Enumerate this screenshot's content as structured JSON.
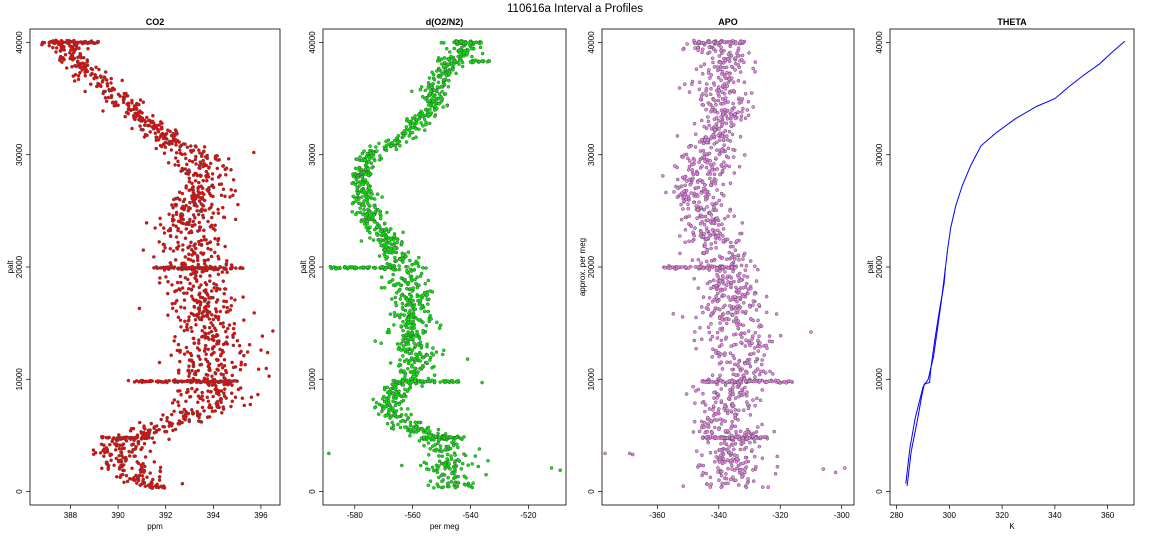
{
  "figure_title": "110616a   Interval a Profiles",
  "chart_data": [
    {
      "type": "scatter",
      "title": "CO2",
      "xlabel": "ppm",
      "ylabel": "palt",
      "xlim": [
        386.3,
        396.8
      ],
      "ylim": [
        -1200,
        41200
      ],
      "xticks": [
        388,
        390,
        392,
        394,
        396
      ],
      "xtick_labels": [
        "388",
        "390",
        "392",
        "394",
        "396"
      ],
      "yticks": [
        0,
        10000,
        20000,
        30000,
        40000
      ],
      "ytick_labels": [
        "0",
        "10000",
        "20000",
        "30000",
        "40000"
      ],
      "color": "#ff0000",
      "profile": [
        {
          "y": 500,
          "x": 391.5
        },
        {
          "y": 2000,
          "x": 390.5
        },
        {
          "y": 3500,
          "x": 390.0
        },
        {
          "y": 4800,
          "x": 390.7
        },
        {
          "y": 6000,
          "x": 392.3
        },
        {
          "y": 7500,
          "x": 393.8
        },
        {
          "y": 9000,
          "x": 394.0
        },
        {
          "y": 10500,
          "x": 393.8
        },
        {
          "y": 12000,
          "x": 394.0
        },
        {
          "y": 14000,
          "x": 393.8
        },
        {
          "y": 16000,
          "x": 393.6
        },
        {
          "y": 18000,
          "x": 393.4
        },
        {
          "y": 20000,
          "x": 393.2
        },
        {
          "y": 22000,
          "x": 393.1
        },
        {
          "y": 24000,
          "x": 393.0
        },
        {
          "y": 26000,
          "x": 393.3
        },
        {
          "y": 28000,
          "x": 393.6
        },
        {
          "y": 30000,
          "x": 393.2
        },
        {
          "y": 31500,
          "x": 392.0
        },
        {
          "y": 33000,
          "x": 391.2
        },
        {
          "y": 34500,
          "x": 390.3
        },
        {
          "y": 36000,
          "x": 389.5
        },
        {
          "y": 37500,
          "x": 388.7
        },
        {
          "y": 38500,
          "x": 388.2
        },
        {
          "y": 40000,
          "x": 387.8
        }
      ],
      "noise_sd": [
        0.45,
        0.55,
        0.55,
        0.45,
        0.6,
        0.75,
        0.75,
        0.8,
        0.8,
        0.75,
        0.8,
        0.75,
        0.75,
        0.7,
        0.65,
        0.65,
        0.6,
        0.6,
        0.45,
        0.4,
        0.35,
        0.35,
        0.4,
        0.35,
        0.4
      ],
      "level_segments": [
        {
          "y": 40000,
          "x_min": 386.8,
          "x_max": 389.2
        },
        {
          "y": 19900,
          "x_min": 391.5,
          "x_max": 395.3
        },
        {
          "y": 9800,
          "x_min": 390.4,
          "x_max": 395.0
        },
        {
          "y": 4800,
          "x_min": 389.3,
          "x_max": 391.3
        }
      ],
      "outliers": [
        {
          "x": 396.5,
          "y": 14300
        },
        {
          "x": 396.0,
          "y": 12600
        },
        {
          "x": 395.7,
          "y": 30200
        },
        {
          "x": 395.6,
          "y": 8400
        },
        {
          "x": 386.8,
          "y": 39800
        },
        {
          "x": 391.5,
          "y": 20900
        },
        {
          "x": 392.7,
          "y": 700
        },
        {
          "x": 395.9,
          "y": 10900
        }
      ]
    },
    {
      "type": "scatter",
      "title": "d(O2/N2)",
      "xlabel": "per meg",
      "ylabel": "palt",
      "xlim": [
        -591,
        -507
      ],
      "ylim": [
        -1200,
        41200
      ],
      "xticks": [
        -580,
        -560,
        -540,
        -520
      ],
      "xtick_labels": [
        "-580",
        "-560",
        "-540",
        "-520"
      ],
      "yticks": [
        0,
        10000,
        20000,
        30000,
        40000
      ],
      "ytick_labels": [
        "0",
        "10000",
        "20000",
        "30000",
        "40000"
      ],
      "color": "#00ee00",
      "profile": [
        {
          "y": 500,
          "x": -545
        },
        {
          "y": 2000,
          "x": -548
        },
        {
          "y": 3500,
          "x": -545
        },
        {
          "y": 4800,
          "x": -552
        },
        {
          "y": 6000,
          "x": -562
        },
        {
          "y": 7500,
          "x": -569
        },
        {
          "y": 9000,
          "x": -566
        },
        {
          "y": 10500,
          "x": -560
        },
        {
          "y": 12000,
          "x": -558
        },
        {
          "y": 14000,
          "x": -562
        },
        {
          "y": 16000,
          "x": -560
        },
        {
          "y": 18000,
          "x": -561
        },
        {
          "y": 20000,
          "x": -563
        },
        {
          "y": 22000,
          "x": -568
        },
        {
          "y": 24000,
          "x": -574
        },
        {
          "y": 26000,
          "x": -577
        },
        {
          "y": 28000,
          "x": -578
        },
        {
          "y": 30000,
          "x": -575
        },
        {
          "y": 31500,
          "x": -563
        },
        {
          "y": 33000,
          "x": -558
        },
        {
          "y": 34500,
          "x": -552
        },
        {
          "y": 36000,
          "x": -553
        },
        {
          "y": 37500,
          "x": -548
        },
        {
          "y": 38500,
          "x": -545
        },
        {
          "y": 40000,
          "x": -542
        }
      ],
      "noise_sd": [
        5,
        5,
        5,
        3.5,
        3.5,
        2.5,
        3,
        3.5,
        3.5,
        4,
        4,
        4,
        3.5,
        3,
        2.5,
        2.5,
        2,
        2.5,
        2.5,
        2.5,
        2,
        2.5,
        2.5,
        3,
        3
      ],
      "level_segments": [
        {
          "y": 40000,
          "x_min": -546,
          "x_max": -536
        },
        {
          "y": 38300,
          "x_min": -540,
          "x_max": -533
        },
        {
          "y": 19950,
          "x_min": -589,
          "x_max": -567
        },
        {
          "y": 9800,
          "x_min": -566,
          "x_max": -544
        },
        {
          "y": 4800,
          "x_min": -557,
          "x_max": -542
        }
      ],
      "outliers": [
        {
          "x": -589,
          "y": 3400
        },
        {
          "x": -512,
          "y": 2100
        },
        {
          "x": -509,
          "y": 1900
        },
        {
          "x": -541,
          "y": 11800
        },
        {
          "x": -536,
          "y": 9700
        }
      ]
    },
    {
      "type": "scatter",
      "title": "APO",
      "xlabel": "",
      "ylabel": "approx. per meg",
      "xlim": [
        -378,
        -296
      ],
      "ylim": [
        -1200,
        41200
      ],
      "xticks": [
        -360,
        -340,
        -320,
        -300
      ],
      "xtick_labels": [
        "-360",
        "-340",
        "-320",
        "-300"
      ],
      "yticks": [
        0,
        10000,
        20000,
        30000,
        40000
      ],
      "ytick_labels": [
        "0",
        "10000",
        "20000",
        "30000",
        "40000"
      ],
      "color": "#ee82ee",
      "profile": [
        {
          "y": 500,
          "x": -336
        },
        {
          "y": 2000,
          "x": -335
        },
        {
          "y": 3500,
          "x": -334
        },
        {
          "y": 4800,
          "x": -336
        },
        {
          "y": 6000,
          "x": -338
        },
        {
          "y": 7500,
          "x": -337
        },
        {
          "y": 9000,
          "x": -336
        },
        {
          "y": 10500,
          "x": -333
        },
        {
          "y": 12000,
          "x": -331
        },
        {
          "y": 14000,
          "x": -334
        },
        {
          "y": 16000,
          "x": -335
        },
        {
          "y": 18000,
          "x": -336
        },
        {
          "y": 20000,
          "x": -338
        },
        {
          "y": 22000,
          "x": -341
        },
        {
          "y": 24000,
          "x": -344
        },
        {
          "y": 26000,
          "x": -347
        },
        {
          "y": 28000,
          "x": -346
        },
        {
          "y": 30000,
          "x": -344
        },
        {
          "y": 31500,
          "x": -341
        },
        {
          "y": 33000,
          "x": -339
        },
        {
          "y": 34500,
          "x": -338
        },
        {
          "y": 36000,
          "x": -340
        },
        {
          "y": 37500,
          "x": -338
        },
        {
          "y": 38500,
          "x": -337
        },
        {
          "y": 40000,
          "x": -342
        }
      ],
      "noise_sd": [
        6,
        6,
        6,
        5,
        5,
        5,
        5,
        6,
        6,
        6,
        6,
        5,
        5,
        5,
        4.5,
        4.5,
        4.5,
        4.5,
        4.5,
        4.5,
        4.5,
        4.5,
        4.5,
        4.5,
        5
      ],
      "level_segments": [
        {
          "y": 40000,
          "x_min": -348,
          "x_max": -332
        },
        {
          "y": 19950,
          "x_min": -358,
          "x_max": -334
        },
        {
          "y": 9800,
          "x_min": -346,
          "x_max": -316
        },
        {
          "y": 4800,
          "x_min": -346,
          "x_max": -324
        }
      ],
      "outliers": [
        {
          "x": -377,
          "y": 3400
        },
        {
          "x": -369,
          "y": 3400
        },
        {
          "x": -368,
          "y": 3300
        },
        {
          "x": -306,
          "y": 2000
        },
        {
          "x": -302,
          "y": 1700
        },
        {
          "x": -299,
          "y": 2100
        },
        {
          "x": -310,
          "y": 14200
        }
      ]
    },
    {
      "type": "line",
      "title": "THETA",
      "xlabel": "K",
      "ylabel": "palt",
      "xlim": [
        277.5,
        370
      ],
      "ylim": [
        -1200,
        41200
      ],
      "xticks": [
        280,
        300,
        320,
        340,
        360
      ],
      "xtick_labels": [
        "280",
        "300",
        "320",
        "340",
        "360"
      ],
      "yticks": [
        0,
        10000,
        20000,
        30000,
        40000
      ],
      "ytick_labels": [
        "0",
        "10000",
        "20000",
        "30000",
        "40000"
      ],
      "color": "#0000ff",
      "ascent": [
        {
          "x": 284.0,
          "y": 500
        },
        {
          "x": 285.5,
          "y": 3500
        },
        {
          "x": 288.0,
          "y": 6500
        },
        {
          "x": 289.5,
          "y": 8500
        },
        {
          "x": 290.5,
          "y": 9600
        },
        {
          "x": 292.5,
          "y": 9700
        },
        {
          "x": 293.0,
          "y": 11000
        },
        {
          "x": 294.5,
          "y": 13500
        },
        {
          "x": 296.5,
          "y": 16500
        },
        {
          "x": 298.0,
          "y": 18500
        },
        {
          "x": 298.5,
          "y": 19900
        }
      ],
      "descent": [
        {
          "x": 298.5,
          "y": 19900
        },
        {
          "x": 299.3,
          "y": 21500
        },
        {
          "x": 300.5,
          "y": 23500
        },
        {
          "x": 302.5,
          "y": 25500
        },
        {
          "x": 305.0,
          "y": 27300
        },
        {
          "x": 308.0,
          "y": 29000
        },
        {
          "x": 312.0,
          "y": 30800
        },
        {
          "x": 318.0,
          "y": 32000
        },
        {
          "x": 325.0,
          "y": 33200
        },
        {
          "x": 333.0,
          "y": 34300
        },
        {
          "x": 340.0,
          "y": 35000
        },
        {
          "x": 345.0,
          "y": 36000
        },
        {
          "x": 351.0,
          "y": 37100
        },
        {
          "x": 357.0,
          "y": 38100
        },
        {
          "x": 362.0,
          "y": 39200
        },
        {
          "x": 366.5,
          "y": 40100
        }
      ],
      "lower_branch": [
        {
          "x": 283.5,
          "y": 700
        },
        {
          "x": 285.0,
          "y": 3800
        },
        {
          "x": 287.0,
          "y": 6500
        },
        {
          "x": 290.0,
          "y": 9300
        },
        {
          "x": 292.0,
          "y": 10000
        },
        {
          "x": 294.0,
          "y": 12000
        },
        {
          "x": 295.5,
          "y": 14500
        },
        {
          "x": 297.0,
          "y": 17000
        },
        {
          "x": 298.5,
          "y": 19900
        }
      ]
    }
  ]
}
